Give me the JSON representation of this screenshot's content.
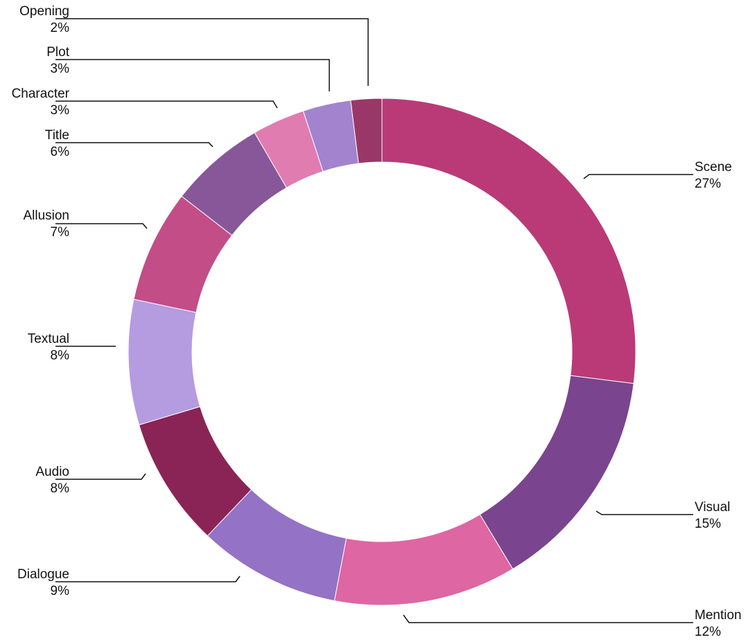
{
  "chart_data": {
    "type": "pie",
    "variant": "donut",
    "title": "",
    "legend": "none",
    "slices": [
      {
        "label": "Scene",
        "value_label": "27%",
        "value": 27.4,
        "color": "#B93A77"
      },
      {
        "label": "Visual",
        "value_label": "15%",
        "value": 14.6,
        "color": "#7B448E"
      },
      {
        "label": "Mention",
        "value_label": "12%",
        "value": 11.8,
        "color": "#DE66A2"
      },
      {
        "label": "Dialogue",
        "value_label": "9%",
        "value": 9.2,
        "color": "#9472C5"
      },
      {
        "label": "Audio",
        "value_label": "8%",
        "value": 8.4,
        "color": "#8A2456"
      },
      {
        "label": "Textual",
        "value_label": "8%",
        "value": 8.1,
        "color": "#B59BE0"
      },
      {
        "label": "Allusion",
        "value_label": "7%",
        "value": 7.3,
        "color": "#C24D87"
      },
      {
        "label": "Title",
        "value_label": "6%",
        "value": 6.2,
        "color": "#875799"
      },
      {
        "label": "Character",
        "value_label": "3%",
        "value": 3.4,
        "color": "#E07CB0"
      },
      {
        "label": "Plot",
        "value_label": "3%",
        "value": 3.1,
        "color": "#A383CD"
      },
      {
        "label": "Opening",
        "value_label": "2%",
        "value": 2.0,
        "color": "#993868"
      }
    ]
  }
}
